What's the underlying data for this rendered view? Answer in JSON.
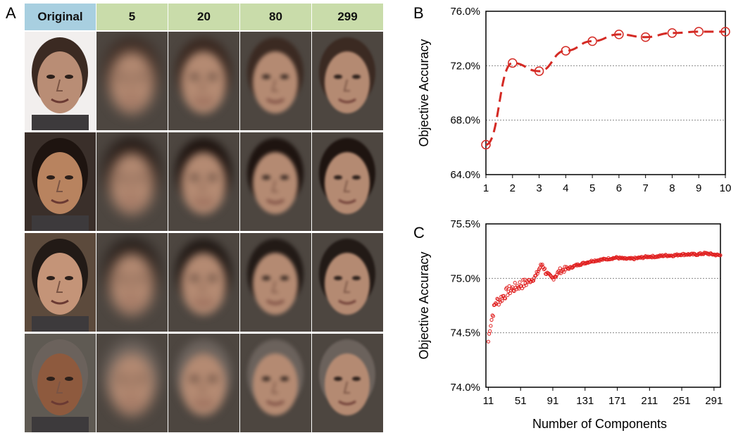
{
  "panels": {
    "a": "A",
    "b": "B",
    "c": "C"
  },
  "faces": {
    "headers": [
      "Original",
      "5",
      "20",
      "80",
      "299"
    ],
    "header_colors": [
      "#a8cfe0",
      "#c9dcaa",
      "#c9dcaa",
      "#c9dcaa",
      "#c9dcaa"
    ],
    "rows": [
      {
        "skin": "#b98d75",
        "hair": "#3b2a22",
        "bg": "#f2efee"
      },
      {
        "skin": "#b8835f",
        "hair": "#1e1410",
        "bg": "#3a2f2a"
      },
      {
        "skin": "#c49478",
        "hair": "#221a16",
        "bg": "#5c4a3c"
      },
      {
        "skin": "#8e5a3e",
        "hair": "#6b625c",
        "bg": "#5f5a53"
      }
    ]
  },
  "chart_data": [
    {
      "type": "line",
      "panel": "B",
      "x": [
        1,
        2,
        3,
        4,
        5,
        6,
        7,
        8,
        9,
        10
      ],
      "series": [
        {
          "values": [
            66.2,
            72.2,
            71.6,
            73.1,
            73.8,
            74.3,
            74.1,
            74.4,
            74.5,
            74.5
          ]
        }
      ],
      "ylabel": "Objective Accuracy",
      "xlabel": "",
      "xticks": [
        "1",
        "2",
        "3",
        "4",
        "5",
        "6",
        "7",
        "8",
        "9",
        "10"
      ],
      "yticks": [
        "64.0%",
        "68.0%",
        "72.0%",
        "76.0%"
      ],
      "ylim": [
        64.0,
        76.0
      ],
      "xlim": [
        1,
        10
      ],
      "grid": "horizontal dotted",
      "color": "#d42a24",
      "line_style": "dashed with open circle markers"
    },
    {
      "type": "scatter",
      "panel": "C",
      "ylabel": "Objective Accuracy",
      "xlabel": "Number of Components",
      "xticks": [
        "11",
        "51",
        "91",
        "131",
        "171",
        "211",
        "251",
        "291"
      ],
      "yticks": [
        "74.0%",
        "74.5%",
        "75.0%",
        "75.5%"
      ],
      "ylim": [
        74.0,
        75.5
      ],
      "xlim": [
        8,
        299
      ],
      "grid": "horizontal dotted",
      "color": "#e02020",
      "keypoints": [
        [
          11,
          74.42
        ],
        [
          13,
          74.55
        ],
        [
          16,
          74.66
        ],
        [
          20,
          74.78
        ],
        [
          25,
          74.8
        ],
        [
          30,
          74.84
        ],
        [
          35,
          74.88
        ],
        [
          40,
          74.9
        ],
        [
          45,
          74.92
        ],
        [
          50,
          74.94
        ],
        [
          55,
          74.95
        ],
        [
          60,
          74.97
        ],
        [
          65,
          74.99
        ],
        [
          70,
          75.02
        ],
        [
          75,
          75.1
        ],
        [
          78,
          75.13
        ],
        [
          82,
          75.06
        ],
        [
          86,
          75.02
        ],
        [
          90,
          75.0
        ],
        [
          95,
          75.03
        ],
        [
          100,
          75.07
        ],
        [
          110,
          75.09
        ],
        [
          120,
          75.12
        ],
        [
          130,
          75.14
        ],
        [
          140,
          75.16
        ],
        [
          150,
          75.17
        ],
        [
          160,
          75.18
        ],
        [
          170,
          75.19
        ],
        [
          180,
          75.18
        ],
        [
          190,
          75.18
        ],
        [
          200,
          75.19
        ],
        [
          210,
          75.2
        ],
        [
          220,
          75.2
        ],
        [
          230,
          75.21
        ],
        [
          240,
          75.21
        ],
        [
          250,
          75.22
        ],
        [
          260,
          75.22
        ],
        [
          270,
          75.22
        ],
        [
          280,
          75.23
        ],
        [
          290,
          75.22
        ],
        [
          299,
          75.21
        ]
      ]
    }
  ]
}
